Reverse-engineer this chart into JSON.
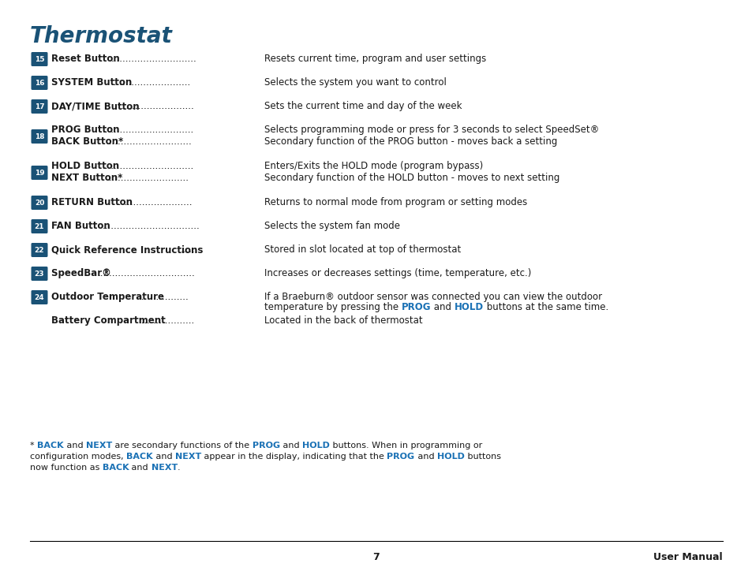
{
  "title": "Thermostat",
  "title_color": "#1a5276",
  "text_color": "#1a1a1a",
  "blue_color": "#1a71b5",
  "bg_color": "#ffffff",
  "badge_bg": "#1a5276",
  "badge_text_color": "#ffffff",
  "page_number": "7",
  "page_label": "User Manual",
  "rows": [
    {
      "badge": "15",
      "label": "Reset Button ",
      "dots": ".............................",
      "description": "Resets current time, program and user settings",
      "sub_label": null,
      "sub_description": null
    },
    {
      "badge": "16",
      "label": "SYSTEM Button",
      "dots": "...........................",
      "description": "Selects the system you want to control",
      "sub_label": null,
      "sub_description": null
    },
    {
      "badge": "17",
      "label": "DAY/TIME Button",
      "dots": ".........................",
      "description": "Sets the current time and day of the week",
      "sub_label": null,
      "sub_description": null
    },
    {
      "badge": "18",
      "label": "PROG Button",
      "dots": "...............................",
      "description": "Selects programming mode or press for 3 seconds to select SpeedSet®",
      "sub_label": "BACK Button*",
      "sub_description": "Secondary function of the PROG button - moves back a setting",
      "sub_dots": "............................."
    },
    {
      "badge": "19",
      "label": "HOLD Button",
      "dots": "...............................",
      "description": "Enters/Exits the HOLD mode (program bypass)",
      "sub_label": "NEXT Button*",
      "sub_description": "Secondary function of the HOLD button - moves to next setting",
      "sub_dots": "............................"
    },
    {
      "badge": "20",
      "label": "RETURN Button ",
      "dots": "..........................",
      "description": "Returns to normal mode from program or setting modes",
      "sub_label": null,
      "sub_description": null
    },
    {
      "badge": "21",
      "label": "FAN Button ",
      "dots": ".................................",
      "description": "Selects the system fan mode",
      "sub_label": null,
      "sub_description": null
    },
    {
      "badge": "22",
      "label": "Quick Reference Instructions",
      "dots": "......",
      "description": "Stored in slot located at top of thermostat",
      "sub_label": null,
      "sub_description": null
    },
    {
      "badge": "23",
      "label": "SpeedBar® ",
      "dots": ".................................",
      "description": "Increases or decreases settings (time, temperature, etc.)",
      "sub_label": null,
      "sub_description": null
    },
    {
      "badge": "24",
      "label": "Outdoor Temperature",
      "dots": ".................",
      "description_parts": [
        {
          "text": "If a Braeburn® outdoor sensor was connected you can view the outdoor",
          "blue": false
        },
        {
          "text": "temperature by pressing the ",
          "blue": false
        },
        {
          "text": "PROG",
          "blue": true
        },
        {
          "text": " and ",
          "blue": false
        },
        {
          "text": "HOLD",
          "blue": true
        },
        {
          "text": " buttons at the same time.",
          "blue": false
        }
      ],
      "sub_label": null,
      "sub_description": null
    },
    {
      "badge": null,
      "label": "Battery Compartment",
      "dots": "...................",
      "description": "Located in the back of thermostat",
      "sub_label": null,
      "sub_description": null
    }
  ],
  "footnote_parts": [
    [
      {
        "text": "* ",
        "blue": false,
        "bold": false
      },
      {
        "text": "BACK",
        "blue": true,
        "bold": true
      },
      {
        "text": " and ",
        "blue": false,
        "bold": false
      },
      {
        "text": "NEXT",
        "blue": true,
        "bold": true
      },
      {
        "text": " are secondary functions of the ",
        "blue": false,
        "bold": false
      },
      {
        "text": "PROG",
        "blue": true,
        "bold": true
      },
      {
        "text": " and ",
        "blue": false,
        "bold": false
      },
      {
        "text": "HOLD",
        "blue": true,
        "bold": true
      },
      {
        "text": " buttons. When in programming or",
        "blue": false,
        "bold": false
      }
    ],
    [
      {
        "text": "configuration modes, ",
        "blue": false,
        "bold": false
      },
      {
        "text": "BACK",
        "blue": true,
        "bold": true
      },
      {
        "text": " and ",
        "blue": false,
        "bold": false
      },
      {
        "text": "NEXT",
        "blue": true,
        "bold": true
      },
      {
        "text": " appear in the display, indicating that the ",
        "blue": false,
        "bold": false
      },
      {
        "text": "PROG",
        "blue": true,
        "bold": true
      },
      {
        "text": " and ",
        "blue": false,
        "bold": false
      },
      {
        "text": "HOLD",
        "blue": true,
        "bold": true
      },
      {
        "text": " buttons",
        "blue": false,
        "bold": false
      }
    ],
    [
      {
        "text": "now function as ",
        "blue": false,
        "bold": false
      },
      {
        "text": "BACK",
        "blue": true,
        "bold": true
      },
      {
        "text": " and ",
        "blue": false,
        "bold": false
      },
      {
        "text": "NEXT",
        "blue": true,
        "bold": true
      },
      {
        "text": ".",
        "blue": false,
        "bold": false
      }
    ]
  ]
}
